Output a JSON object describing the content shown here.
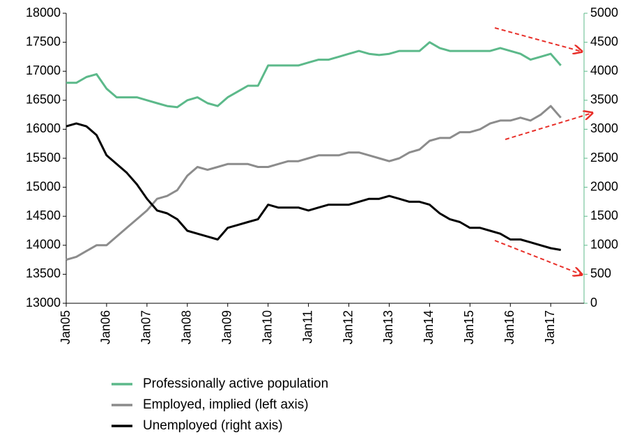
{
  "chart_data": {
    "type": "line",
    "categories": [
      "Jan05",
      null,
      null,
      null,
      "Jan06",
      null,
      null,
      null,
      "Jan07",
      null,
      null,
      null,
      "Jan08",
      null,
      null,
      null,
      "Jan09",
      null,
      null,
      null,
      "Jan10",
      null,
      null,
      null,
      "Jan11",
      null,
      null,
      null,
      "Jan12",
      null,
      null,
      null,
      "Jan13",
      null,
      null,
      null,
      "Jan14",
      null,
      null,
      null,
      "Jan15",
      null,
      null,
      null,
      "Jan16",
      null,
      null,
      null,
      "Jan17",
      null,
      null,
      null
    ],
    "series": [
      {
        "name": "Professionally active population",
        "color": "#5cb98a",
        "values": [
          16800,
          16800,
          16900,
          16950,
          16700,
          16550,
          16550,
          16550,
          16500,
          16450,
          16400,
          16380,
          16500,
          16550,
          16450,
          16400,
          16550,
          16650,
          16750,
          16750,
          17100,
          17100,
          17100,
          17100,
          17150,
          17200,
          17200,
          17250,
          17300,
          17350,
          17300,
          17280,
          17300,
          17350,
          17350,
          17350,
          17500,
          17400,
          17350,
          17350,
          17350,
          17350,
          17350,
          17400,
          17350,
          17300,
          17200,
          17250,
          17300,
          17100,
          null,
          null
        ]
      },
      {
        "name": "Employed, implied (left axis)",
        "color": "#8c8c8c",
        "values": [
          13750,
          13800,
          13900,
          14000,
          14000,
          14150,
          14300,
          14450,
          14600,
          14800,
          14850,
          14950,
          15200,
          15350,
          15300,
          15350,
          15400,
          15400,
          15400,
          15350,
          15350,
          15400,
          15450,
          15450,
          15500,
          15550,
          15550,
          15550,
          15600,
          15600,
          15550,
          15500,
          15450,
          15500,
          15600,
          15650,
          15800,
          15850,
          15850,
          15950,
          15950,
          16000,
          16100,
          16150,
          16150,
          16200,
          16150,
          16250,
          16400,
          16200,
          null,
          null
        ]
      },
      {
        "name": "Unemployed (right axis)",
        "color": "#000000",
        "axis": "y2",
        "values": [
          3050,
          3100,
          3050,
          2900,
          2550,
          2400,
          2250,
          2050,
          1800,
          1600,
          1550,
          1450,
          1250,
          1200,
          1150,
          1100,
          1300,
          1350,
          1400,
          1450,
          1700,
          1650,
          1650,
          1650,
          1600,
          1650,
          1700,
          1700,
          1700,
          1750,
          1800,
          1800,
          1850,
          1800,
          1750,
          1750,
          1700,
          1550,
          1450,
          1400,
          1300,
          1300,
          1250,
          1200,
          1100,
          1100,
          1050,
          1000,
          950,
          920,
          null,
          null
        ]
      }
    ],
    "ylim": [
      13000,
      18000
    ],
    "yticks": [
      13000,
      13500,
      14000,
      14500,
      15000,
      15500,
      16000,
      16500,
      17000,
      17500,
      18000
    ],
    "y2lim": [
      0,
      5000
    ],
    "y2ticks": [
      0,
      500,
      1000,
      1500,
      2000,
      2500,
      3000,
      3500,
      4000,
      4500,
      5000
    ]
  }
}
